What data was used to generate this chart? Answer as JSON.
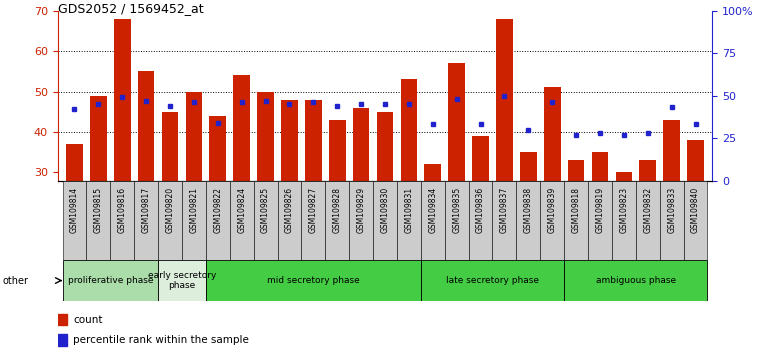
{
  "title": "GDS2052 / 1569452_at",
  "samples": [
    "GSM109814",
    "GSM109815",
    "GSM109816",
    "GSM109817",
    "GSM109820",
    "GSM109821",
    "GSM109822",
    "GSM109824",
    "GSM109825",
    "GSM109826",
    "GSM109827",
    "GSM109828",
    "GSM109829",
    "GSM109830",
    "GSM109831",
    "GSM109834",
    "GSM109835",
    "GSM109836",
    "GSM109837",
    "GSM109838",
    "GSM109839",
    "GSM109818",
    "GSM109819",
    "GSM109823",
    "GSM109832",
    "GSM109833",
    "GSM109840"
  ],
  "counts": [
    37,
    49,
    68,
    55,
    45,
    50,
    44,
    54,
    50,
    48,
    48,
    43,
    46,
    45,
    53,
    32,
    57,
    39,
    68,
    35,
    51,
    33,
    35,
    30,
    33,
    43,
    38
  ],
  "percentiles": [
    42,
    45,
    49,
    47,
    44,
    46,
    34,
    46,
    47,
    45,
    46,
    44,
    45,
    45,
    45,
    33,
    48,
    33,
    50,
    30,
    46,
    27,
    28,
    27,
    28,
    43,
    33
  ],
  "ylim_left": [
    28,
    70
  ],
  "ylim_right": [
    0,
    100
  ],
  "bar_color": "#cc2200",
  "dot_color": "#2222cc",
  "left_axis_color": "#cc2200",
  "right_axis_color": "#2222cc",
  "left_ticks": [
    30,
    40,
    50,
    60,
    70
  ],
  "right_ticks": [
    0,
    25,
    50,
    75,
    100
  ],
  "right_tick_labels": [
    "0",
    "25",
    "50",
    "75",
    "100%"
  ],
  "grid_yticks": [
    40,
    50,
    60
  ],
  "tick_bg_color": "#cccccc",
  "phases": [
    {
      "label": "proliferative phase",
      "start": 0,
      "end": 4,
      "color": "#aaddaa"
    },
    {
      "label": "early secretory\nphase",
      "start": 4,
      "end": 6,
      "color": "#ddeedd"
    },
    {
      "label": "mid secretory phase",
      "start": 6,
      "end": 15,
      "color": "#44cc44"
    },
    {
      "label": "late secretory phase",
      "start": 15,
      "end": 21,
      "color": "#44cc44"
    },
    {
      "label": "ambiguous phase",
      "start": 21,
      "end": 27,
      "color": "#44cc44"
    }
  ]
}
